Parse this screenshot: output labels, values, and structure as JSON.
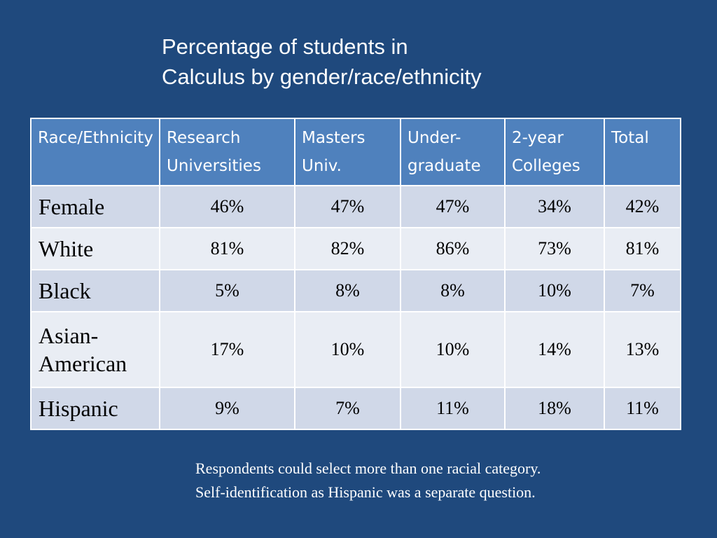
{
  "slide": {
    "title_line1": "Percentage of students in",
    "title_line2": "Calculus by gender/race/ethnicity",
    "note_line1": "Respondents could select more than one racial category.",
    "note_line2": "Self-identification as Hispanic was a separate question."
  },
  "table": {
    "headers": [
      "Race/Ethnicity",
      "Research Universities",
      "Masters Univ.",
      "Under-graduate",
      "2-year Colleges",
      "Total"
    ],
    "rows": [
      {
        "label": "Female",
        "values": [
          "46%",
          "47%",
          "47%",
          "34%",
          "42%"
        ]
      },
      {
        "label": "White",
        "values": [
          "81%",
          "82%",
          "86%",
          "73%",
          "81%"
        ]
      },
      {
        "label": "Black",
        "values": [
          "5%",
          "8%",
          "8%",
          "10%",
          "7%"
        ]
      },
      {
        "label": "Asian-American",
        "values": [
          "17%",
          "10%",
          "10%",
          "14%",
          "13%"
        ]
      },
      {
        "label": "Hispanic",
        "values": [
          "9%",
          "7%",
          "11%",
          "18%",
          "11%"
        ]
      }
    ]
  },
  "colors": {
    "background": "#1f497d",
    "header": "#4f81bd",
    "row_dark": "#d0d8e8",
    "row_light": "#e9edf4"
  }
}
